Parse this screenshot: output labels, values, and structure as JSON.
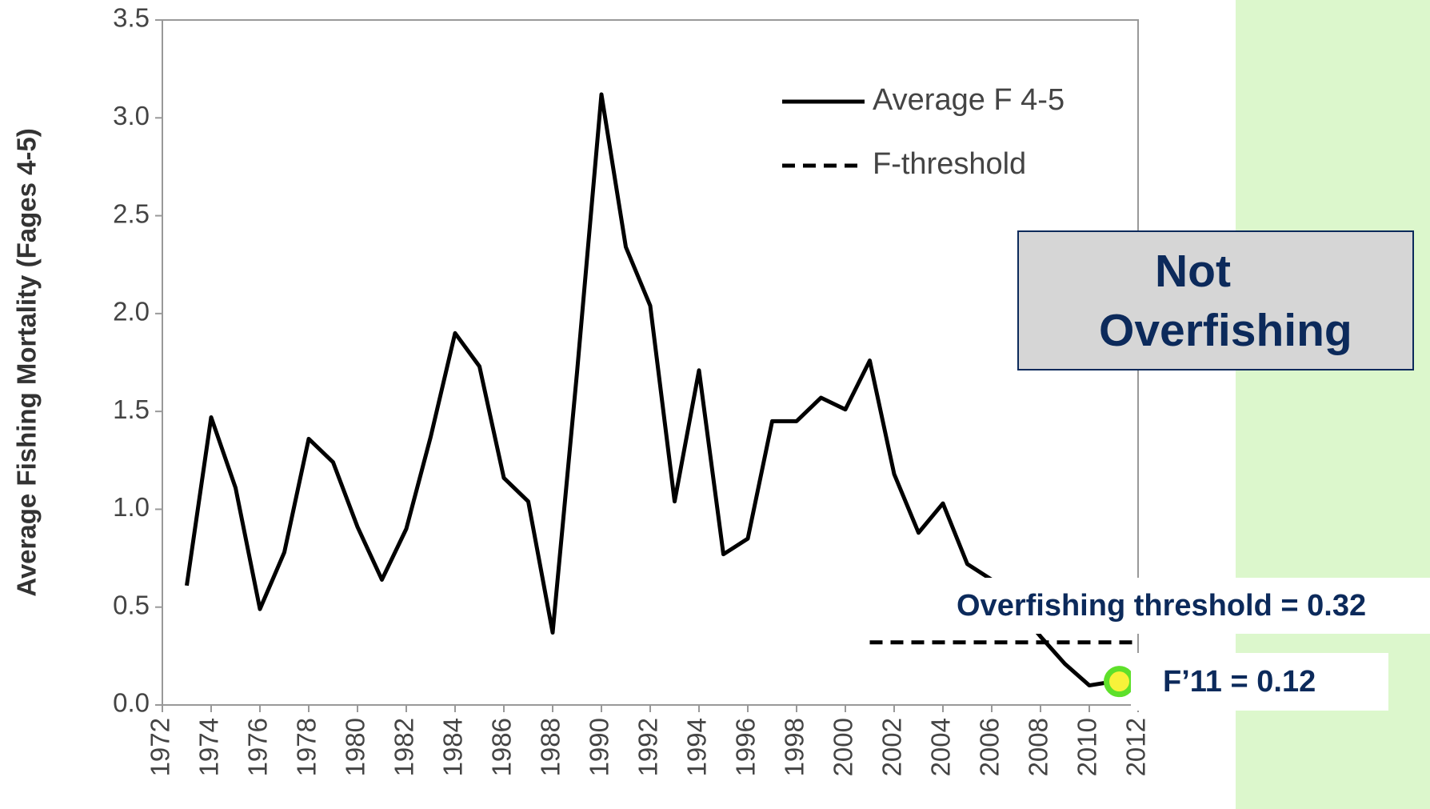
{
  "chart_data": {
    "type": "line",
    "ylabel": "Average Fishing Mortality (Fages 4-5)",
    "xlim": [
      1972,
      2012
    ],
    "xticks": [
      1972,
      1974,
      1976,
      1978,
      1980,
      1982,
      1984,
      1986,
      1988,
      1990,
      1992,
      1994,
      1996,
      1998,
      2000,
      2002,
      2004,
      2006,
      2008,
      2010,
      2012
    ],
    "ylim": [
      0,
      3.5
    ],
    "yticks": [
      {
        "value": 0,
        "label": "0.0"
      },
      0.5,
      {
        "value": 1,
        "label": "1.0"
      },
      1.5,
      {
        "value": 2,
        "label": "2.0"
      },
      2.5,
      {
        "value": 3,
        "label": "3.0"
      },
      3.5
    ],
    "grid": false,
    "legend": "upper right",
    "series": [
      {
        "name": "Average F 4-5",
        "color": "#000000",
        "style": "solid",
        "x": [
          1973,
          1974,
          1975,
          1976,
          1977,
          1978,
          1979,
          1980,
          1981,
          1982,
          1983,
          1984,
          1985,
          1986,
          1987,
          1988,
          1989,
          1990,
          1991,
          1992,
          1993,
          1994,
          1995,
          1996,
          1997,
          1998,
          1999,
          2000,
          2001,
          2002,
          2003,
          2004,
          2005,
          2006,
          2007,
          2008,
          2009,
          2010,
          2011
        ],
        "values": [
          0.61,
          1.47,
          1.11,
          0.49,
          0.78,
          1.36,
          1.24,
          0.91,
          0.64,
          0.9,
          1.37,
          1.9,
          1.73,
          1.16,
          1.04,
          0.37,
          1.7,
          3.12,
          2.34,
          2.04,
          1.04,
          1.71,
          0.77,
          0.85,
          1.45,
          1.45,
          1.57,
          1.51,
          1.76,
          1.18,
          0.88,
          1.03,
          0.72,
          0.64,
          0.5,
          0.35,
          0.21,
          0.1,
          0.12
        ]
      },
      {
        "name": "F-threshold",
        "color": "#000000",
        "style": "dashed",
        "x": [
          2001,
          2012
        ],
        "values": [
          0.32,
          0.32
        ]
      }
    ],
    "highlight": {
      "x": 2011,
      "value": 0.12,
      "label": "F’11 = 0.12",
      "color": "#f7f23a",
      "edge": "#5ee02a"
    },
    "annotations": {
      "status": "Not Overfishing",
      "threshold": "Overfishing threshold = 0.32"
    }
  }
}
